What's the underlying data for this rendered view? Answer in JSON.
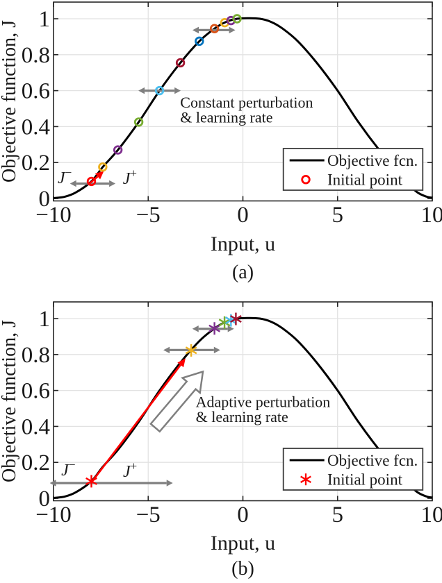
{
  "figure": {
    "ylabel": "Objective function, J",
    "xlabel": "Input, u",
    "x_tick_labels": [
      "−10",
      "−5",
      "0",
      "5",
      "10"
    ],
    "y_tick_labels": [
      "0",
      "0.2",
      "0.4",
      "0.6",
      "0.8",
      "1"
    ],
    "axis_color": "#262626",
    "grid_color": "#e2e2e2",
    "arrow_gray": "#7f7f7f",
    "legend": {
      "line_label": "Objective fcn.",
      "point_label": "Initial point"
    }
  },
  "chart_data": [
    {
      "type": "line",
      "subplot": "a",
      "caption": "(a)",
      "xlabel": "Input, u",
      "ylabel": "Objective function, J",
      "xlim": [
        -10,
        10
      ],
      "ylim": [
        -0.02,
        1.09
      ],
      "grid": true,
      "legend_position": "lower right",
      "marker_style": "circle",
      "annotation": "Constant perturbation & learning rate",
      "curve": {
        "name": "Objective fcn.",
        "color": "#000000",
        "points": [
          [
            -10,
            0.002
          ],
          [
            -9.4,
            0.01
          ],
          [
            -8.8,
            0.035
          ],
          [
            -8,
            0.095
          ],
          [
            -7.4,
            0.175
          ],
          [
            -6.6,
            0.27
          ],
          [
            -5.5,
            0.425
          ],
          [
            -4.4,
            0.6
          ],
          [
            -3.3,
            0.755
          ],
          [
            -2.3,
            0.875
          ],
          [
            -1.5,
            0.945
          ],
          [
            -0.9,
            0.982
          ],
          [
            -0.3,
            1.0
          ],
          [
            0.3,
            1.003
          ],
          [
            0.9,
            1.0
          ],
          [
            1.5,
            0.982
          ],
          [
            2.1,
            0.945
          ],
          [
            2.9,
            0.875
          ],
          [
            3.9,
            0.755
          ],
          [
            5.0,
            0.6
          ],
          [
            6.1,
            0.425
          ],
          [
            7.2,
            0.27
          ],
          [
            8.0,
            0.175
          ],
          [
            8.6,
            0.095
          ],
          [
            9.2,
            0.035
          ],
          [
            9.7,
            0.01
          ],
          [
            10,
            0.004
          ]
        ]
      },
      "markers": [
        {
          "u": -8.0,
          "J": 0.095,
          "color": "#ff0000",
          "label": "initial"
        },
        {
          "u": -7.4,
          "J": 0.175,
          "color": "#edb120"
        },
        {
          "u": -6.6,
          "J": 0.27,
          "color": "#7e2f8e"
        },
        {
          "u": -5.5,
          "J": 0.425,
          "color": "#77ac30"
        },
        {
          "u": -4.4,
          "J": 0.6,
          "color": "#4dbeee"
        },
        {
          "u": -3.3,
          "J": 0.755,
          "color": "#a2142f"
        },
        {
          "u": -2.3,
          "J": 0.875,
          "color": "#0072bd"
        },
        {
          "u": -1.5,
          "J": 0.945,
          "color": "#d95319"
        },
        {
          "u": -0.96,
          "J": 0.978,
          "color": "#edb120"
        },
        {
          "u": -0.63,
          "J": 0.99,
          "color": "#7e2f8e"
        },
        {
          "u": -0.31,
          "J": 1.0,
          "color": "#77ac30"
        }
      ],
      "perturb_arrows": [
        {
          "u1": -9.13,
          "u2": -6.73,
          "J": 0.083
        },
        {
          "u1": -5.52,
          "u2": -3.28,
          "J": 0.6
        },
        {
          "u1": -2.66,
          "u2": -0.4,
          "J": 0.937
        }
      ],
      "red_arrow": {
        "from": [
          -8.1,
          0.083
        ],
        "to": [
          -7.34,
          0.153
        ]
      },
      "note": {
        "lines": [
          "Constant perturbation",
          "& learning rate"
        ],
        "u": -3.31,
        "J": 0.506
      },
      "j_minus": {
        "base": "J",
        "sup": "−",
        "u": -9.78,
        "J": 0.085
      },
      "j_plus": {
        "base": "J",
        "sup": "+",
        "u": -6.34,
        "J": 0.081
      }
    },
    {
      "type": "line",
      "subplot": "b",
      "caption": "(b)",
      "xlabel": "Input, u",
      "ylabel": "Objective function, J",
      "xlim": [
        -10,
        10
      ],
      "ylim": [
        -0.02,
        1.09
      ],
      "grid": true,
      "legend_position": "lower right",
      "marker_style": "asterisk",
      "annotation": "Adaptive perturbation & learning rate",
      "curve": {
        "name": "Objective fcn.",
        "color": "#000000",
        "points": [
          [
            -10,
            0.002
          ],
          [
            -9.4,
            0.01
          ],
          [
            -8.8,
            0.035
          ],
          [
            -8,
            0.095
          ],
          [
            -7.4,
            0.175
          ],
          [
            -6.6,
            0.27
          ],
          [
            -5.5,
            0.425
          ],
          [
            -4.4,
            0.6
          ],
          [
            -3.3,
            0.755
          ],
          [
            -2.3,
            0.875
          ],
          [
            -1.5,
            0.945
          ],
          [
            -0.9,
            0.982
          ],
          [
            -0.3,
            1.0
          ],
          [
            0.3,
            1.003
          ],
          [
            0.9,
            1.0
          ],
          [
            1.5,
            0.982
          ],
          [
            2.1,
            0.945
          ],
          [
            2.9,
            0.875
          ],
          [
            3.9,
            0.755
          ],
          [
            5.0,
            0.6
          ],
          [
            6.1,
            0.425
          ],
          [
            7.2,
            0.27
          ],
          [
            8.0,
            0.175
          ],
          [
            8.6,
            0.095
          ],
          [
            9.2,
            0.035
          ],
          [
            9.7,
            0.01
          ],
          [
            10,
            0.004
          ]
        ]
      },
      "markers": [
        {
          "u": -8.0,
          "J": 0.095,
          "color": "#ff0000",
          "label": "initial"
        },
        {
          "u": -2.73,
          "J": 0.823,
          "color": "#edb120"
        },
        {
          "u": -1.5,
          "J": 0.945,
          "color": "#7e2f8e"
        },
        {
          "u": -0.97,
          "J": 0.978,
          "color": "#77ac30"
        },
        {
          "u": -0.63,
          "J": 0.99,
          "color": "#4dbeee"
        },
        {
          "u": -0.37,
          "J": 0.998,
          "color": "#a2142f"
        }
      ],
      "perturb_arrows": [
        {
          "u1": -10.2,
          "u2": -3.7,
          "J": 0.085
        },
        {
          "u1": -4.2,
          "u2": -1.2,
          "J": 0.825
        },
        {
          "u1": -2.67,
          "u2": -0.47,
          "J": 0.943
        }
      ],
      "red_arrow": {
        "from": [
          -8.0,
          0.088
        ],
        "to": [
          -3.03,
          0.779
        ]
      },
      "block_arrow": {
        "tail": [
          -4.63,
          0.393
        ],
        "tip": [
          -2.11,
          0.705
        ]
      },
      "note": {
        "lines": [
          "Adaptive perturbation",
          "& learning rate"
        ],
        "u": -2.49,
        "J": 0.508
      },
      "j_minus": {
        "base": "J",
        "sup": "−",
        "u": -9.59,
        "J": 0.128
      },
      "j_plus": {
        "base": "J",
        "sup": "+",
        "u": -6.33,
        "J": 0.12
      }
    }
  ]
}
